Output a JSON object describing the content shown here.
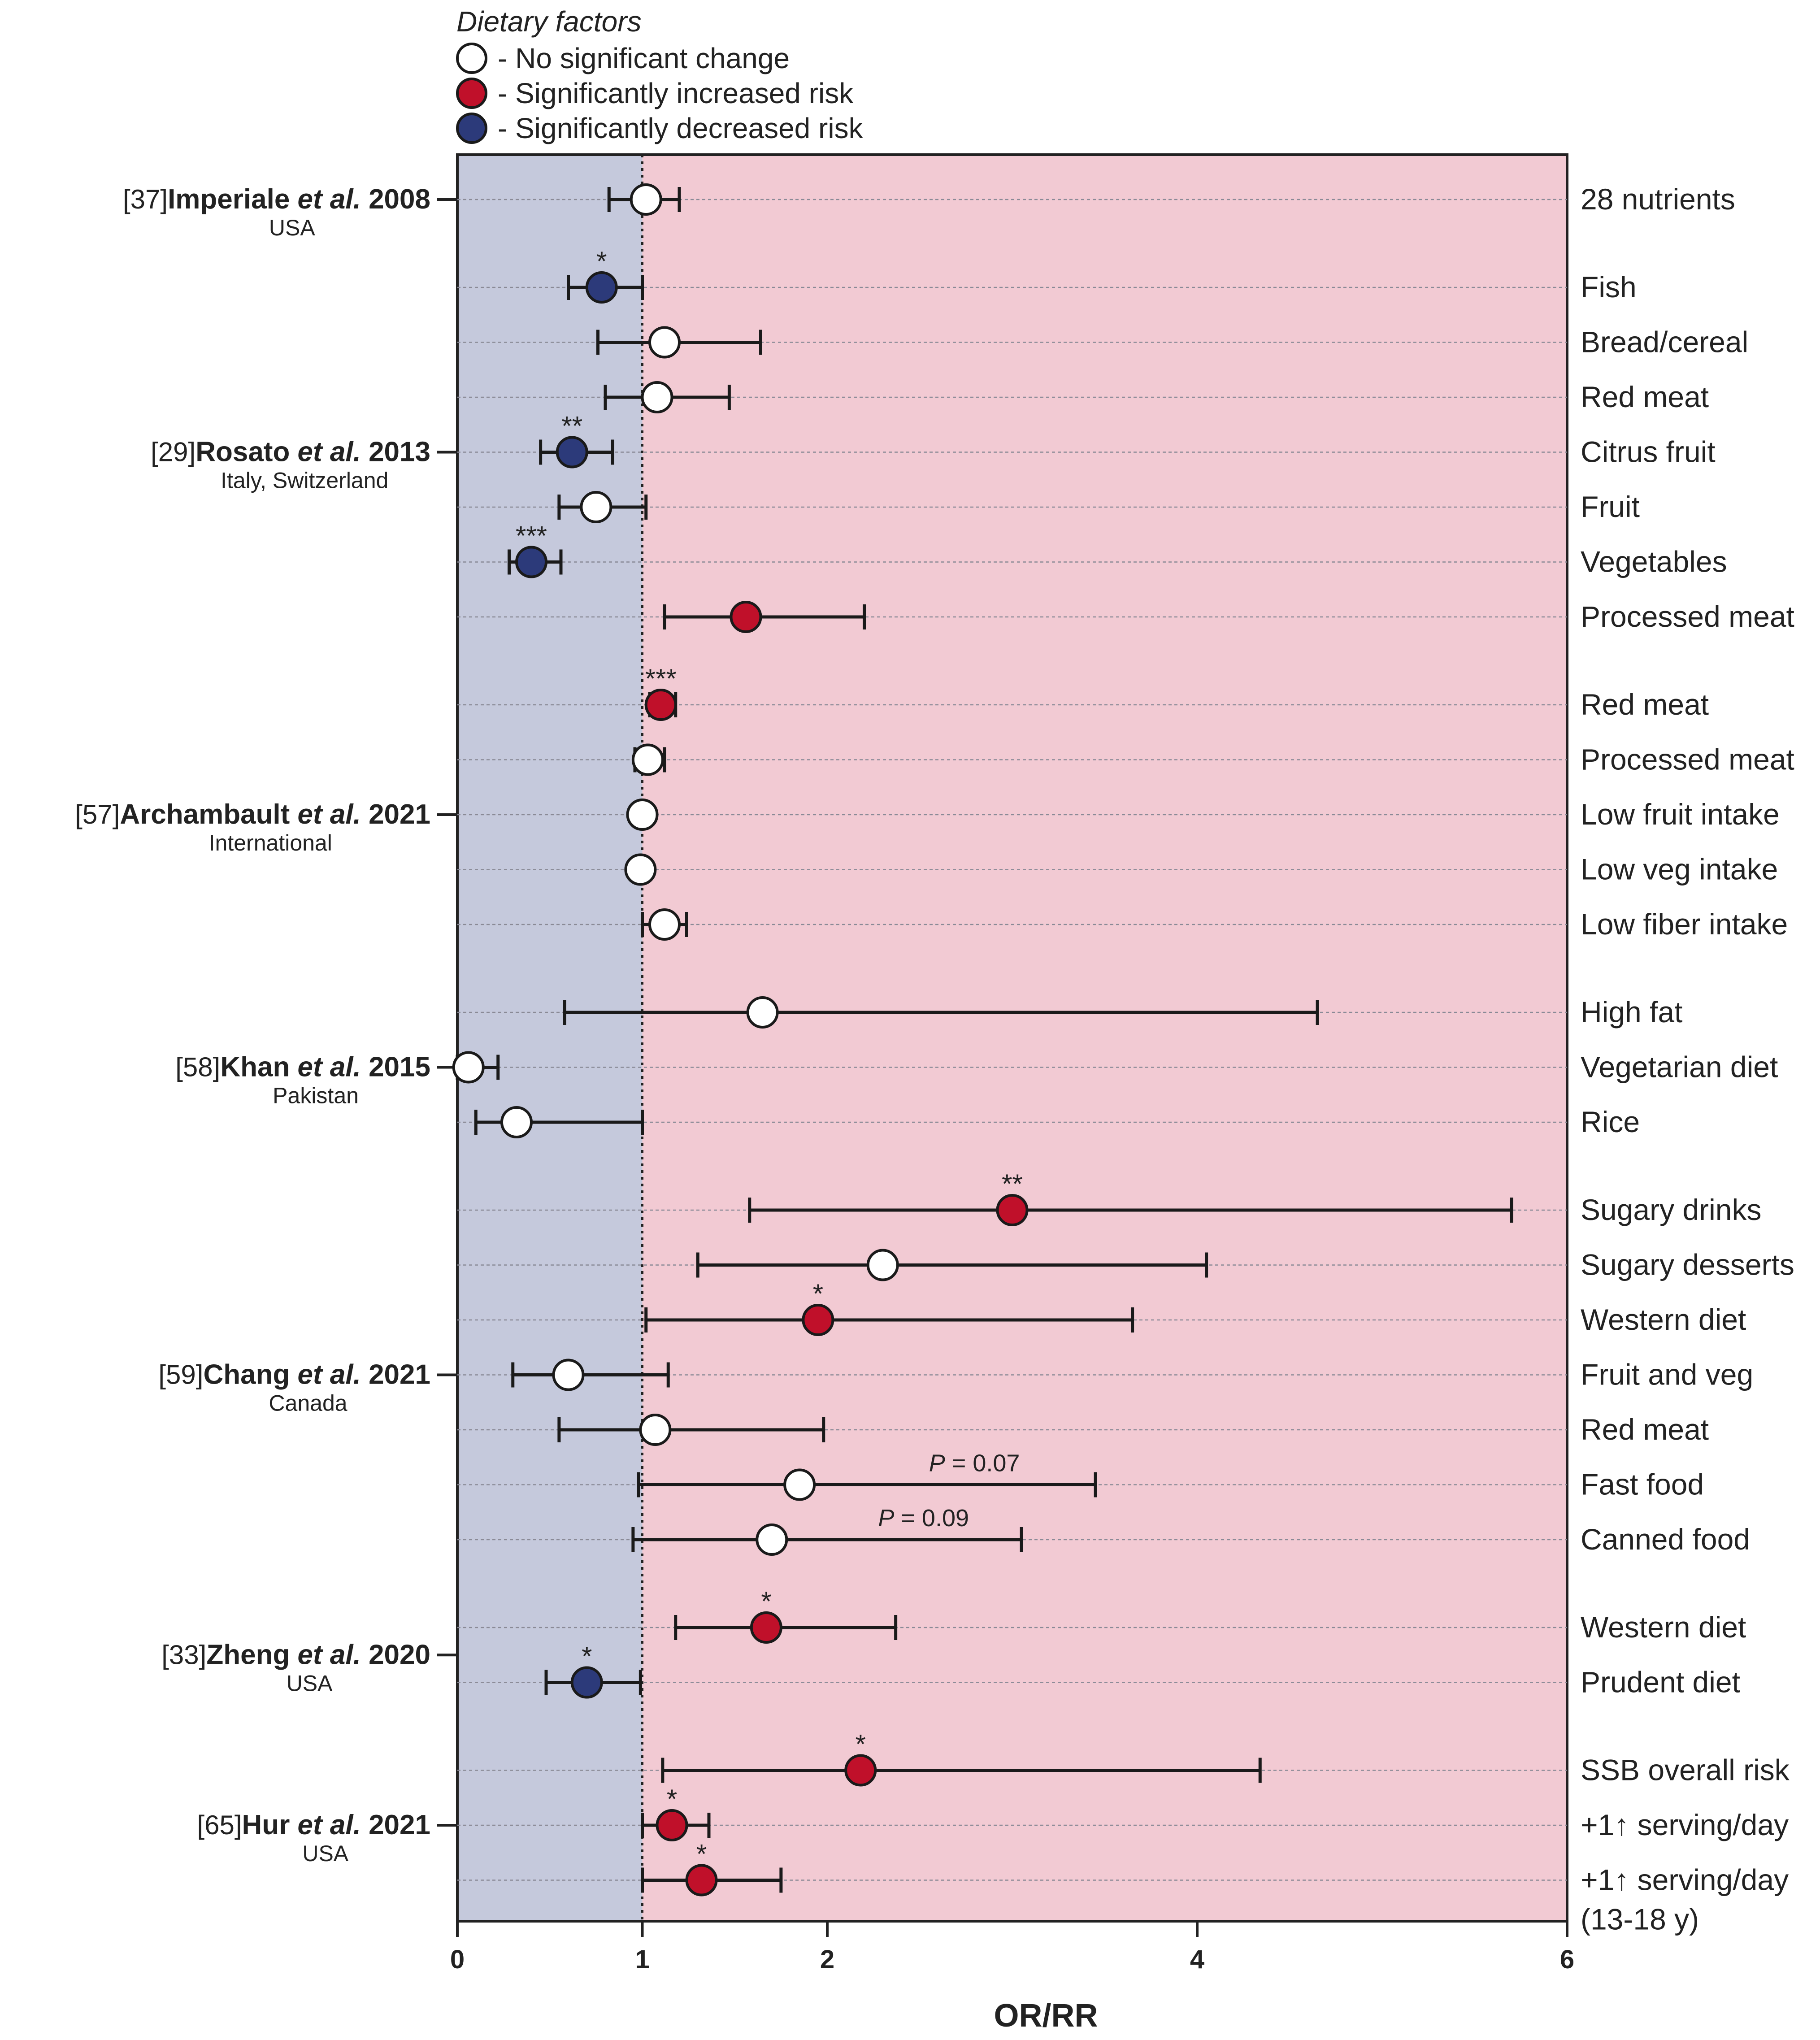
{
  "chart_data": {
    "type": "forest",
    "xlabel": "OR/RR",
    "xlim": [
      0,
      6
    ],
    "reference_line": 1,
    "xticks": [
      {
        "value": 0,
        "label": "0"
      },
      {
        "value": 1,
        "label": "1"
      },
      {
        "value": 2,
        "label": "2"
      },
      {
        "value": 4,
        "label": "4"
      },
      {
        "value": 6,
        "label": "6"
      }
    ],
    "legend": {
      "title": "Dietary factors",
      "items": [
        {
          "status": "ns",
          "label": "- No significant change",
          "color": "#ffffff"
        },
        {
          "status": "inc",
          "label": "- Significantly increased risk",
          "color": "#c0102a"
        },
        {
          "status": "dec",
          "label": "- Significantly decreased risk",
          "color": "#2c3a7a"
        }
      ]
    },
    "studies": [
      {
        "ref": "[37]",
        "author": "Imperiale",
        "etal": "et al.",
        "year": "2008",
        "country": "USA",
        "row": 0
      },
      {
        "ref": "[29]",
        "author": "Rosato",
        "etal": "et al.",
        "year": "2013",
        "country": "Italy, Switzerland",
        "row": 4.6
      },
      {
        "ref": "[57]",
        "author": "Archambault",
        "etal": "et al.",
        "year": "2021",
        "country": "International",
        "row": 11.2
      },
      {
        "ref": "[58]",
        "author": "Khan",
        "etal": "et al.",
        "year": "2015",
        "country": "Pakistan",
        "row": 15.8
      },
      {
        "ref": "[59]",
        "author": "Chang",
        "etal": "et al.",
        "year": "2021",
        "country": "Canada",
        "row": 21.4
      },
      {
        "ref": "[33]",
        "author": "Zheng",
        "etal": "et al.",
        "year": "2020",
        "country": "USA",
        "row": 26.5
      },
      {
        "ref": "[65]",
        "author": "Hur",
        "etal": "et al.",
        "year": "2021",
        "country": "USA",
        "row": 29.6
      }
    ],
    "rows": [
      {
        "row": 0,
        "label": "28 nutrients",
        "est": 1.02,
        "lo": 0.82,
        "hi": 1.2,
        "status": "ns",
        "sig": ""
      },
      {
        "row": 1.6,
        "label": "Fish",
        "est": 0.78,
        "lo": 0.6,
        "hi": 1.0,
        "status": "dec",
        "sig": "*"
      },
      {
        "row": 2.6,
        "label": "Bread/cereal",
        "est": 1.12,
        "lo": 0.76,
        "hi": 1.64,
        "status": "ns",
        "sig": ""
      },
      {
        "row": 3.6,
        "label": "Red meat",
        "est": 1.08,
        "lo": 0.8,
        "hi": 1.47,
        "status": "ns",
        "sig": ""
      },
      {
        "row": 4.6,
        "label": "Citrus fruit",
        "est": 0.62,
        "lo": 0.45,
        "hi": 0.84,
        "status": "dec",
        "sig": "**"
      },
      {
        "row": 5.6,
        "label": "Fruit",
        "est": 0.75,
        "lo": 0.55,
        "hi": 1.02,
        "status": "ns",
        "sig": ""
      },
      {
        "row": 6.6,
        "label": "Vegetables",
        "est": 0.4,
        "lo": 0.28,
        "hi": 0.56,
        "status": "dec",
        "sig": "***"
      },
      {
        "row": 7.6,
        "label": "Processed meat",
        "est": 1.56,
        "lo": 1.12,
        "hi": 2.2,
        "status": "inc",
        "sig": ""
      },
      {
        "row": 9.2,
        "label": "Red meat",
        "est": 1.1,
        "lo": 1.04,
        "hi": 1.18,
        "status": "inc",
        "sig": "***"
      },
      {
        "row": 10.2,
        "label": "Processed meat",
        "est": 1.03,
        "lo": 0.96,
        "hi": 1.12,
        "status": "ns",
        "sig": ""
      },
      {
        "row": 11.2,
        "label": "Low fruit intake",
        "est": 1.0,
        "lo": 0.96,
        "hi": 1.04,
        "status": "ns",
        "sig": ""
      },
      {
        "row": 12.2,
        "label": "Low veg intake",
        "est": 0.99,
        "lo": 0.95,
        "hi": 1.03,
        "status": "ns",
        "sig": ""
      },
      {
        "row": 13.2,
        "label": "Low fiber intake",
        "est": 1.12,
        "lo": 1.0,
        "hi": 1.24,
        "status": "ns",
        "sig": ""
      },
      {
        "row": 14.8,
        "label": "High fat",
        "est": 1.65,
        "lo": 0.58,
        "hi": 4.65,
        "status": "ns",
        "sig": ""
      },
      {
        "row": 15.8,
        "label": "Vegetarian diet",
        "est": 0.06,
        "lo": 0.0,
        "hi": 0.22,
        "status": "ns",
        "sig": ""
      },
      {
        "row": 16.8,
        "label": "Rice",
        "est": 0.32,
        "lo": 0.1,
        "hi": 1.0,
        "status": "ns",
        "sig": ""
      },
      {
        "row": 18.4,
        "label": "Sugary drinks",
        "est": 3.0,
        "lo": 1.58,
        "hi": 5.7,
        "status": "inc",
        "sig": "**"
      },
      {
        "row": 19.4,
        "label": "Sugary desserts",
        "est": 2.3,
        "lo": 1.3,
        "hi": 4.05,
        "status": "ns",
        "sig": ""
      },
      {
        "row": 20.4,
        "label": "Western diet",
        "est": 1.95,
        "lo": 1.02,
        "hi": 3.65,
        "status": "inc",
        "sig": "*"
      },
      {
        "row": 21.4,
        "label": "Fruit and veg",
        "est": 0.6,
        "lo": 0.3,
        "hi": 1.14,
        "status": "ns",
        "sig": ""
      },
      {
        "row": 22.4,
        "label": "Red meat",
        "est": 1.07,
        "lo": 0.55,
        "hi": 1.98,
        "status": "ns",
        "sig": ""
      },
      {
        "row": 23.4,
        "label": "Fast food",
        "est": 1.85,
        "lo": 0.98,
        "hi": 3.45,
        "status": "ns",
        "sig": "",
        "ptext": "P = 0.07"
      },
      {
        "row": 24.4,
        "label": "Canned food",
        "est": 1.7,
        "lo": 0.95,
        "hi": 3.05,
        "status": "ns",
        "sig": "",
        "ptext": "P = 0.09"
      },
      {
        "row": 26.0,
        "label": "Western diet",
        "est": 1.67,
        "lo": 1.18,
        "hi": 2.37,
        "status": "inc",
        "sig": "*"
      },
      {
        "row": 27.0,
        "label": "Prudent diet",
        "est": 0.7,
        "lo": 0.48,
        "hi": 0.99,
        "status": "dec",
        "sig": "*"
      },
      {
        "row": 28.6,
        "label": "SSB overall risk",
        "est": 2.18,
        "lo": 1.11,
        "hi": 4.34,
        "status": "inc",
        "sig": "*"
      },
      {
        "row": 29.6,
        "label": "+1↑ serving/day",
        "est": 1.16,
        "lo": 1.0,
        "hi": 1.36,
        "status": "inc",
        "sig": "*"
      },
      {
        "row": 30.6,
        "label": "+1↑ serving/day",
        "label2": "(13-18 y)",
        "est": 1.32,
        "lo": 1.0,
        "hi": 1.75,
        "status": "inc",
        "sig": "*"
      }
    ]
  }
}
